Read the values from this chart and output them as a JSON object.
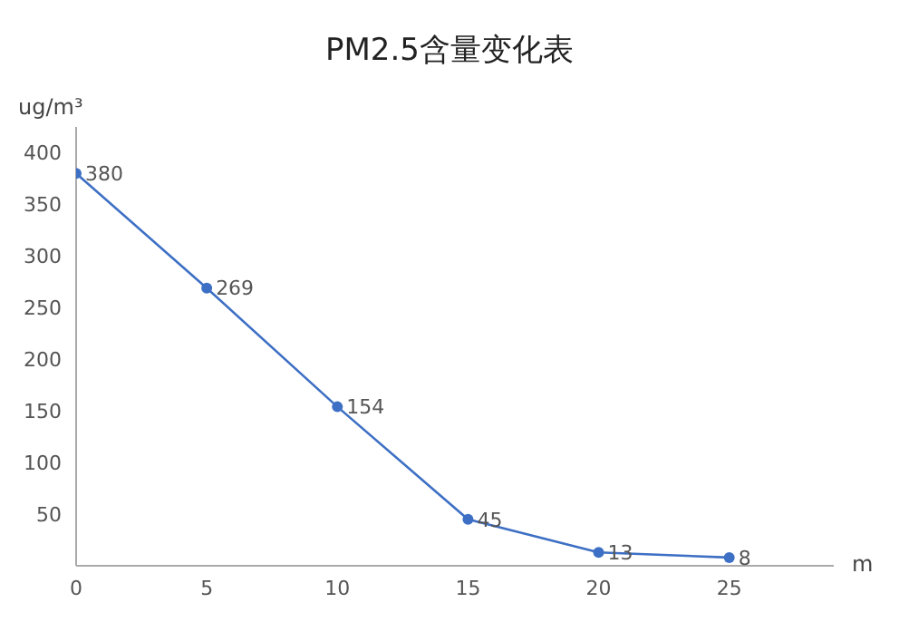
{
  "chart_data": {
    "type": "line",
    "title": "PM2.5含量变化表",
    "xlabel": "m",
    "ylabel": "ug/m³",
    "x": [
      0,
      5,
      10,
      15,
      20,
      25
    ],
    "series": [
      {
        "color": "#3d6fc4",
        "values": [
          380,
          269,
          154,
          45,
          13,
          8
        ]
      }
    ],
    "xlim": [
      0,
      29
    ],
    "xticks": [
      0,
      5,
      10,
      15,
      20,
      25
    ],
    "ylim": [
      0,
      425
    ],
    "yticks": [
      50,
      100,
      150,
      200,
      250,
      300,
      350,
      400
    ],
    "data_labels": true,
    "marker": "circle",
    "grid": false,
    "legend": false
  }
}
